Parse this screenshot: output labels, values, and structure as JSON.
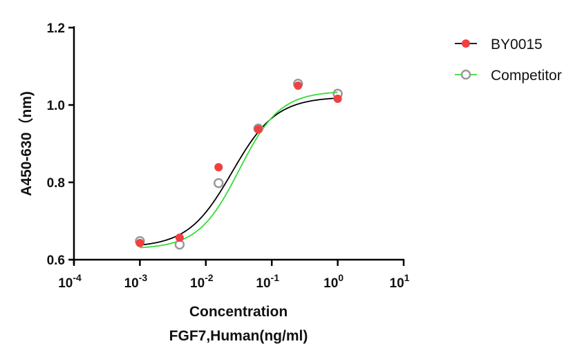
{
  "chart_data": {
    "type": "scatter",
    "xlabel": "Concentration",
    "xlabel2": "FGF7,Human(ng/ml)",
    "ylabel": "A450-630（nm)",
    "xscale": "log",
    "xlim": [
      0.0001,
      10
    ],
    "ylim": [
      0.6,
      1.2
    ],
    "x_ticks": [
      {
        "base": "10",
        "exp": "-4"
      },
      {
        "base": "10",
        "exp": "-3"
      },
      {
        "base": "10",
        "exp": "-2"
      },
      {
        "base": "10",
        "exp": "-1"
      },
      {
        "base": "10",
        "exp": "0"
      },
      {
        "base": "10",
        "exp": "1"
      }
    ],
    "y_ticks": [
      "0.6",
      "0.8",
      "1.0",
      "1.2"
    ],
    "legend_position": "top-right",
    "grid": false,
    "series": [
      {
        "name": "BY0015",
        "marker": "filled-circle",
        "marker_color": "#f04040",
        "line_color": "#000000",
        "x": [
          0.001,
          0.004,
          0.0156,
          0.0625,
          0.25,
          1
        ],
        "y": [
          0.643,
          0.657,
          0.839,
          0.937,
          1.05,
          1.016
        ],
        "fit": {
          "bottom": 0.632,
          "top": 1.021,
          "ec50": 0.025,
          "hill": 1.3
        }
      },
      {
        "name": "Competitor",
        "marker": "open-circle",
        "marker_color": "#999999",
        "line_color": "#33dd33",
        "x": [
          0.001,
          0.004,
          0.0156,
          0.0625,
          0.25,
          1
        ],
        "y": [
          0.648,
          0.639,
          0.798,
          0.939,
          1.055,
          1.029
        ],
        "fit": {
          "bottom": 0.628,
          "top": 1.036,
          "ec50": 0.032,
          "hill": 1.4
        }
      }
    ]
  }
}
